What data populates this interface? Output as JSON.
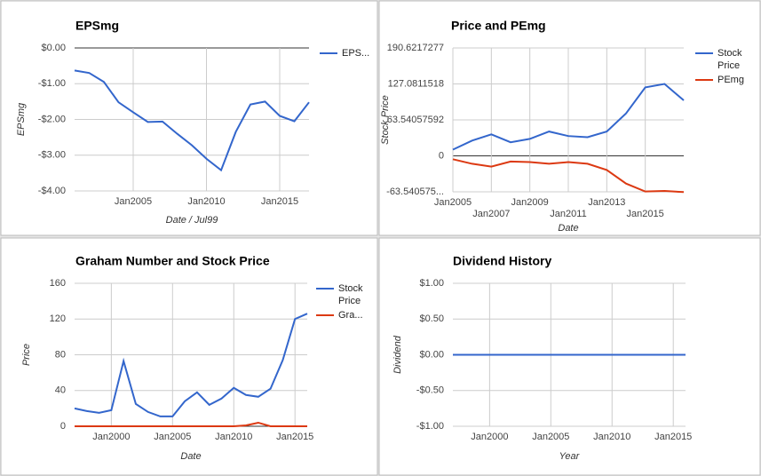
{
  "chart_data": [
    {
      "type": "line",
      "title": "EPSmg",
      "y_label": "EPSmg",
      "x_label": "Date / Jul99",
      "x": [
        2001,
        2002,
        2003,
        2004,
        2005,
        2006,
        2007,
        2008,
        2009,
        2010,
        2011,
        2012,
        2013,
        2014,
        2015,
        2016,
        2017
      ],
      "series": [
        {
          "name": "EPS...",
          "color": "#3366cc",
          "values": [
            -0.63,
            -0.7,
            -0.95,
            -1.52,
            -1.8,
            -2.07,
            -2.06,
            -2.4,
            -2.72,
            -3.1,
            -3.42,
            -2.35,
            -1.58,
            -1.5,
            -1.9,
            -2.05,
            -1.52
          ]
        }
      ],
      "xlim": [
        2001,
        2017
      ],
      "ylim": [
        -4,
        0
      ],
      "yticks": [
        {
          "value": 0,
          "label": "$0.00"
        },
        {
          "value": -1,
          "label": "-$1.00"
        },
        {
          "value": -2,
          "label": "-$2.00"
        },
        {
          "value": -3,
          "label": "-$3.00"
        },
        {
          "value": -4,
          "label": "-$4.00"
        }
      ],
      "xticks": [
        {
          "value": 2005,
          "label": "Jan2005"
        },
        {
          "value": 2010,
          "label": "Jan2010"
        },
        {
          "value": 2015,
          "label": "Jan2015"
        }
      ],
      "grid": true,
      "legend": "right"
    },
    {
      "type": "line",
      "title": "Price and PEmg",
      "y_label": "Stock Price",
      "x_label": "Date",
      "x": [
        2005,
        2006,
        2007,
        2008,
        2009,
        2010,
        2011,
        2012,
        2013,
        2014,
        2015,
        2016,
        2017
      ],
      "series": [
        {
          "name": "Stock Price",
          "color": "#3366cc",
          "values": [
            11,
            27,
            38,
            24,
            30,
            43,
            35,
            33,
            43,
            75,
            121,
            127,
            98
          ]
        },
        {
          "name": "PEmg",
          "color": "#dc3912",
          "values": [
            -6,
            -14,
            -19,
            -10,
            -11,
            -14,
            -11,
            -14,
            -25,
            -49,
            -63,
            -62,
            -64
          ]
        }
      ],
      "xlim": [
        2005,
        2017
      ],
      "ylim": [
        -63.54057592,
        190.6217277
      ],
      "yticks": [
        190.6217277,
        127.0811518,
        63.54057592,
        0,
        {
          "value": -63.54057592,
          "label": "-63.540575..."
        }
      ],
      "xticks": [
        {
          "value": 2005,
          "label": "Jan2005"
        },
        {
          "value": 2007,
          "label": "Jan2007"
        },
        {
          "value": 2009,
          "label": "Jan2009"
        },
        {
          "value": 2011,
          "label": "Jan2011"
        },
        {
          "value": 2013,
          "label": "Jan2013"
        },
        {
          "value": 2015,
          "label": "Jan2015"
        }
      ],
      "grid": true,
      "legend": "right"
    },
    {
      "type": "line",
      "title": "Graham Number and Stock Price",
      "y_label": "Price",
      "x_label": "Date",
      "x": [
        1997,
        1998,
        1999,
        2000,
        2001,
        2002,
        2003,
        2004,
        2005,
        2006,
        2007,
        2008,
        2009,
        2010,
        2011,
        2012,
        2013,
        2014,
        2015,
        2016
      ],
      "series": [
        {
          "name": "Stock Price",
          "color": "#3366cc",
          "values": [
            20,
            17,
            15,
            18,
            73,
            25,
            16,
            11,
            11,
            28,
            38,
            24,
            31,
            43,
            35,
            33,
            42,
            74,
            120,
            126
          ]
        },
        {
          "name": "Gra...",
          "color": "#dc3912",
          "values": [
            0,
            0,
            0,
            0,
            0,
            0,
            0,
            0,
            0,
            0,
            0,
            0,
            0,
            0,
            1,
            4,
            0,
            0,
            0,
            0
          ]
        }
      ],
      "xlim": [
        1997,
        2016
      ],
      "ylim": [
        0,
        160
      ],
      "yticks": [
        0,
        40,
        80,
        120,
        160
      ],
      "xticks": [
        {
          "value": 2000,
          "label": "Jan2000"
        },
        {
          "value": 2005,
          "label": "Jan2005"
        },
        {
          "value": 2010,
          "label": "Jan2010"
        },
        {
          "value": 2015,
          "label": "Jan2015"
        }
      ],
      "grid": true,
      "legend": "right"
    },
    {
      "type": "line",
      "title": "Dividend History",
      "y_label": "Dividend",
      "x_label": "Year",
      "x": [
        1997,
        1998,
        1999,
        2000,
        2001,
        2002,
        2003,
        2004,
        2005,
        2006,
        2007,
        2008,
        2009,
        2010,
        2011,
        2012,
        2013,
        2014,
        2015,
        2016
      ],
      "series": [
        {
          "color": "#3366cc",
          "values": [
            0,
            0,
            0,
            0,
            0,
            0,
            0,
            0,
            0,
            0,
            0,
            0,
            0,
            0,
            0,
            0,
            0,
            0,
            0,
            0
          ]
        }
      ],
      "xlim": [
        1997,
        2016
      ],
      "ylim": [
        -1,
        1
      ],
      "yticks": [
        {
          "value": 1,
          "label": "$1.00"
        },
        {
          "value": 0.5,
          "label": "$0.50"
        },
        {
          "value": 0,
          "label": "$0.00"
        },
        {
          "value": -0.5,
          "label": "-$0.50"
        },
        {
          "value": -1,
          "label": "-$1.00"
        }
      ],
      "xticks": [
        {
          "value": 2000,
          "label": "Jan2000"
        },
        {
          "value": 2005,
          "label": "Jan2005"
        },
        {
          "value": 2010,
          "label": "Jan2010"
        },
        {
          "value": 2015,
          "label": "Jan2015"
        }
      ],
      "grid": true
    }
  ]
}
